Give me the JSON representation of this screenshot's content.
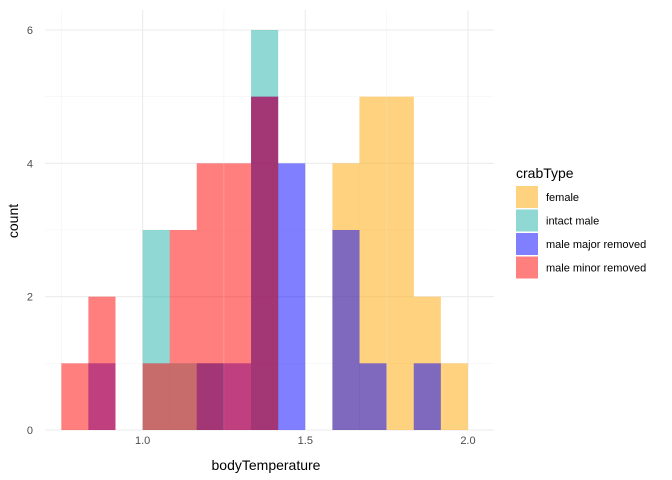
{
  "chart_data": {
    "type": "histogram",
    "xlabel": "bodyTemperature",
    "ylabel": "count",
    "xlim": [
      0.7,
      2.08
    ],
    "ylim": [
      0,
      6.3
    ],
    "x_ticks": [
      1.0,
      1.5,
      2.0
    ],
    "x_tick_labels": [
      "1.0",
      "1.5",
      "2.0"
    ],
    "y_ticks": [
      0,
      2,
      4,
      6
    ],
    "y_tick_labels": [
      "0",
      "2",
      "4",
      "6"
    ],
    "bin_width": 0.0833,
    "bins": [
      0.792,
      0.875,
      0.958,
      1.042,
      1.125,
      1.208,
      1.292,
      1.375,
      1.458,
      1.542,
      1.625,
      1.708,
      1.792,
      1.875,
      1.958
    ],
    "grid": true,
    "legend_position": "right",
    "legend_title": "crabType",
    "series": [
      {
        "name": "female",
        "color": "#FFA500",
        "values": [
          0,
          0,
          0,
          0,
          0,
          0,
          0,
          0,
          0,
          0,
          4,
          5,
          5,
          2,
          1
        ]
      },
      {
        "name": "intact male",
        "color": "#20B2AA",
        "values": [
          0,
          0,
          0,
          3,
          1,
          1,
          0,
          6,
          0,
          0,
          0,
          0,
          0,
          0,
          0
        ]
      },
      {
        "name": "male major removed",
        "color": "#0000FF",
        "values": [
          0,
          1,
          0,
          0,
          0,
          1,
          1,
          5,
          4,
          0,
          3,
          1,
          0,
          1,
          0
        ]
      },
      {
        "name": "male minor removed",
        "color": "#FF0000",
        "values": [
          1,
          2,
          0,
          1,
          3,
          4,
          4,
          5,
          0,
          0,
          0,
          0,
          0,
          0,
          0
        ]
      }
    ]
  }
}
